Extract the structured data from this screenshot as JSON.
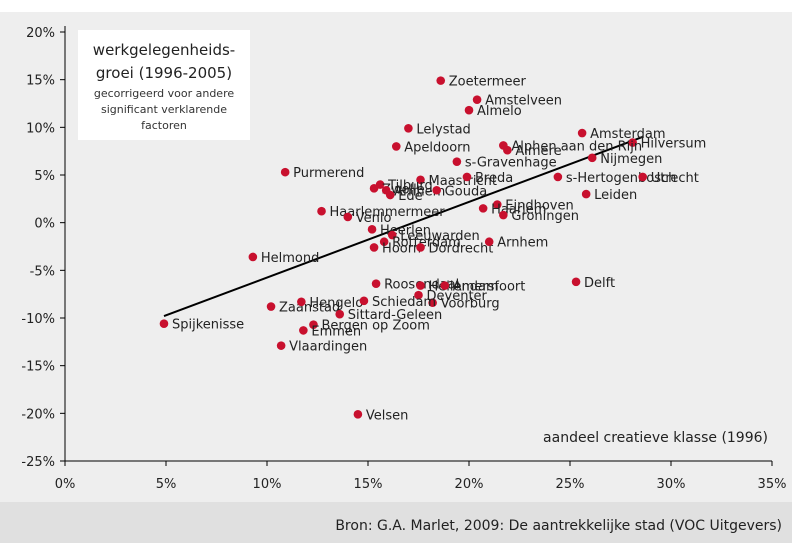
{
  "chart_data": {
    "type": "scatter",
    "title_lines": [
      "werkgelegenheids-",
      "groei (1996-2005)"
    ],
    "subtitle_lines": [
      "gecorrigeerd voor andere",
      "significant verklarende",
      "factoren"
    ],
    "xlabel": "aandeel creatieve klasse (1996)",
    "ylabel": "",
    "xlim": [
      0,
      35
    ],
    "ylim": [
      -25,
      20
    ],
    "x_ticks": [
      {
        "value": 0,
        "label": "0%"
      },
      {
        "value": 5,
        "label": "5%"
      },
      {
        "value": 10,
        "label": "10%"
      },
      {
        "value": 15,
        "label": "15%"
      },
      {
        "value": 20,
        "label": "20%"
      },
      {
        "value": 25,
        "label": "25%"
      },
      {
        "value": 30,
        "label": "30%"
      },
      {
        "value": 35,
        "label": "35%"
      }
    ],
    "y_ticks": [
      {
        "value": 20,
        "label": "20%"
      },
      {
        "value": 15,
        "label": "15%"
      },
      {
        "value": 10,
        "label": "10%"
      },
      {
        "value": 5,
        "label": "5%"
      },
      {
        "value": 0,
        "label": "0%"
      },
      {
        "value": -5,
        "label": "-5%"
      },
      {
        "value": -10,
        "label": "-10%"
      },
      {
        "value": -15,
        "label": "-15%"
      },
      {
        "value": -20,
        "label": "-20%"
      },
      {
        "value": -25,
        "label": "-25%"
      }
    ],
    "trendline": {
      "x": [
        4.9,
        28.6
      ],
      "y": [
        -9.8,
        9.0
      ]
    },
    "points": [
      {
        "name": "Zoetermeer",
        "x": 18.6,
        "y": 14.9
      },
      {
        "name": "Amstelveen",
        "x": 20.4,
        "y": 12.9
      },
      {
        "name": "Almelo",
        "x": 20.0,
        "y": 11.8
      },
      {
        "name": "Lelystad",
        "x": 17.0,
        "y": 9.9
      },
      {
        "name": "Amsterdam",
        "x": 25.6,
        "y": 9.4
      },
      {
        "name": "Hilversum",
        "x": 28.1,
        "y": 8.4
      },
      {
        "name": "Alphen aan den Rijn",
        "x": 21.7,
        "y": 8.1
      },
      {
        "name": "Almere",
        "x": 21.9,
        "y": 7.6
      },
      {
        "name": "Apeldoorn",
        "x": 16.4,
        "y": 8.0
      },
      {
        "name": "Nijmegen",
        "x": 26.1,
        "y": 6.8
      },
      {
        "name": "s-Gravenhage",
        "x": 19.4,
        "y": 6.4
      },
      {
        "name": "Purmerend",
        "x": 10.9,
        "y": 5.3
      },
      {
        "name": "s-Hertogenbosch",
        "x": 24.4,
        "y": 4.8
      },
      {
        "name": "Utrecht",
        "x": 28.6,
        "y": 4.8
      },
      {
        "name": "Maastricht",
        "x": 17.6,
        "y": 4.5
      },
      {
        "name": "Breda",
        "x": 19.9,
        "y": 4.8
      },
      {
        "name": "Tilburg",
        "x": 15.6,
        "y": 4.0
      },
      {
        "name": "Zwolle",
        "x": 15.3,
        "y": 3.6
      },
      {
        "name": "Arnhem",
        "x": 15.9,
        "y": 3.4
      },
      {
        "name": "Ede",
        "x": 16.1,
        "y": 2.9
      },
      {
        "name": "Gouda",
        "x": 18.4,
        "y": 3.4
      },
      {
        "name": "Leiden",
        "x": 25.8,
        "y": 3.0
      },
      {
        "name": "Eindhoven",
        "x": 21.4,
        "y": 1.9
      },
      {
        "name": "Haarlem",
        "x": 20.7,
        "y": 1.5
      },
      {
        "name": "Groningen",
        "x": 21.7,
        "y": 0.8
      },
      {
        "name": "Haarlemmermeer",
        "x": 12.7,
        "y": 1.2
      },
      {
        "name": "Venlo",
        "x": 14.0,
        "y": 0.6
      },
      {
        "name": "Heerlen",
        "x": 15.2,
        "y": -0.7
      },
      {
        "name": "Leeuwarden",
        "x": 16.2,
        "y": -1.3
      },
      {
        "name": "Rotterdam",
        "x": 15.8,
        "y": -2.0
      },
      {
        "name": "Hoorn",
        "x": 15.3,
        "y": -2.6
      },
      {
        "name": "Dordrecht",
        "x": 17.6,
        "y": -2.6
      },
      {
        "name": "Arnhem",
        "x": 21.0,
        "y": -2.0
      },
      {
        "name": "Helmond",
        "x": 9.3,
        "y": -3.6
      },
      {
        "name": "Roosendaal",
        "x": 15.4,
        "y": -6.4
      },
      {
        "name": "Hellendam",
        "x": 17.6,
        "y": -6.6
      },
      {
        "name": "Amersfoort",
        "x": 18.8,
        "y": -6.6
      },
      {
        "name": "Delft",
        "x": 25.3,
        "y": -6.2
      },
      {
        "name": "Deventer",
        "x": 17.5,
        "y": -7.6
      },
      {
        "name": "Voorburg",
        "x": 18.2,
        "y": -8.4
      },
      {
        "name": "Zaanstad",
        "x": 10.2,
        "y": -8.8
      },
      {
        "name": "Hengelo",
        "x": 11.7,
        "y": -8.3
      },
      {
        "name": "Schiedam",
        "x": 14.8,
        "y": -8.2
      },
      {
        "name": "Sittard-Geleen",
        "x": 13.6,
        "y": -9.6
      },
      {
        "name": "Spijkenisse",
        "x": 4.9,
        "y": -10.6
      },
      {
        "name": "Bergen op Zoom",
        "x": 12.3,
        "y": -10.7
      },
      {
        "name": "Emmen",
        "x": 11.8,
        "y": -11.3
      },
      {
        "name": "Vlaardingen",
        "x": 10.7,
        "y": -12.9
      },
      {
        "name": "Velsen",
        "x": 14.5,
        "y": -20.1
      }
    ]
  },
  "source": "Bron: G.A. Marlet, 2009: De aantrekkelijke stad (VOC Uitgevers)",
  "colors": {
    "point": "#c8102e",
    "trend": "#000000",
    "panel": "#eeeeee",
    "footer": "#e0e0e0"
  }
}
